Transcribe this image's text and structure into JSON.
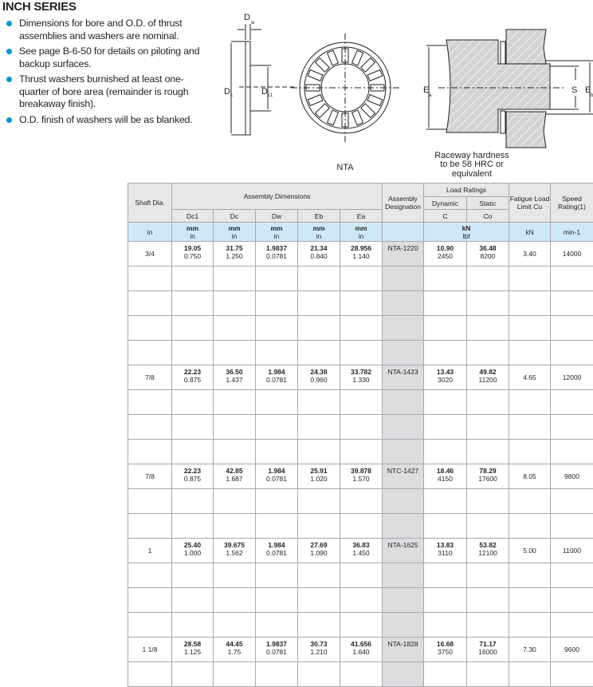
{
  "title": "INCH SERIES",
  "bullets": [
    "Dimensions for bore and O.D. of thrust assemblies and washers are nominal.",
    "See page B-6-50 for details on piloting and backup surfaces.",
    "Thrust washers burnished at least one-quarter of bore area (remainder is rough breakaway finish).",
    "O.D. finish of washers will be as blanked."
  ],
  "colors": {
    "bullet": "#0096d6",
    "units_row": "#cde9f9",
    "header": "#e6e7e8",
    "designation_col": "#dcdddf"
  },
  "diagram": {
    "labels": {
      "dw": "D",
      "dw_sub": "w",
      "dc": "D",
      "dc_sub": "c",
      "dc1": "D",
      "dc1_sub": "c1",
      "ea": "E",
      "ea_sub": "a",
      "s": "S",
      "eb": "E",
      "eb_sub": "b"
    },
    "caption_nta": "NTA",
    "caption_raceway": [
      "Raceway hardness",
      "to be 58 HRC or",
      "equivalent"
    ]
  },
  "table": {
    "headers": {
      "shaft": "Shaft Dia.",
      "assembly_dims": "Assembly Dimensions",
      "designation": "Assembly Designation",
      "load_ratings": "Load Ratings",
      "dynamic": "Dynamic",
      "static": "Static",
      "fatigue": "Fatigue Load Limit Cu",
      "speed": "Speed Rating(1)"
    },
    "symbols": [
      "Dc1",
      "Dc",
      "Dw",
      "Eb",
      "Ea",
      "C",
      "Co"
    ],
    "units": {
      "shaft": "in",
      "dim_mm": "mm",
      "dim_in": "in",
      "load_kn": "kN",
      "load_lbf": "lbf",
      "fatigue": "kN",
      "speed": "min-1"
    },
    "rows": [
      {
        "shaft": "3/4",
        "dc1": [
          "19.05",
          "0.750"
        ],
        "dc": [
          "31.75",
          "1.250"
        ],
        "dw": [
          "1.9837",
          "0.0781"
        ],
        "eb": [
          "21.34",
          "0.840"
        ],
        "ea": [
          "28.956",
          "1.140"
        ],
        "designation": "NTA-1220",
        "c": [
          "10.90",
          "2450"
        ],
        "co": [
          "36.48",
          "8200"
        ],
        "cu": "3.40",
        "speed": "14000",
        "blanks": 4
      },
      {
        "shaft": "7/8",
        "dc1": [
          "22.23",
          "0.875"
        ],
        "dc": [
          "36.50",
          "1.437"
        ],
        "dw": [
          "1.984",
          "0.0781"
        ],
        "eb": [
          "24.38",
          "0.960"
        ],
        "ea": [
          "33.782",
          "1.330"
        ],
        "designation": "NTA-1423",
        "c": [
          "13.43",
          "3020"
        ],
        "co": [
          "49.82",
          "11200"
        ],
        "cu": "4.65",
        "speed": "12000",
        "blanks": 3
      },
      {
        "shaft": "7/8",
        "dc1": [
          "22.23",
          "0.875"
        ],
        "dc": [
          "42.85",
          "1.687"
        ],
        "dw": [
          "1.984",
          "0.0781"
        ],
        "eb": [
          "25.91",
          "1.020"
        ],
        "ea": [
          "39.878",
          "1.570"
        ],
        "designation": "NTC-1427",
        "c": [
          "18.46",
          "4150"
        ],
        "co": [
          "78.29",
          "17600"
        ],
        "cu": "8.05",
        "speed": "9800",
        "blanks": 2
      },
      {
        "shaft": "1",
        "dc1": [
          "25.40",
          "1.000"
        ],
        "dc": [
          "39.675",
          "1.562"
        ],
        "dw": [
          "1.984",
          "0.0781"
        ],
        "eb": [
          "27.69",
          "1.090"
        ],
        "ea": [
          "36.83",
          "1.450"
        ],
        "designation": "NTA-1625",
        "c": [
          "13.83",
          "3110"
        ],
        "co": [
          "53.82",
          "12100"
        ],
        "cu": "5.00",
        "speed": "11000",
        "blanks": 3
      },
      {
        "shaft": "1 1/8",
        "dc1": [
          "28.58",
          "1.125"
        ],
        "dc": [
          "44.45",
          "1.75"
        ],
        "dw": [
          "1.9837",
          "0.0781"
        ],
        "eb": [
          "30.73",
          "1.210"
        ],
        "ea": [
          "41.656",
          "1.640"
        ],
        "designation": "NTA-1828",
        "c": [
          "16.68",
          "3750"
        ],
        "co": [
          "71.17",
          "16000"
        ],
        "cu": "7.30",
        "speed": "9600",
        "blanks": 1
      }
    ]
  }
}
